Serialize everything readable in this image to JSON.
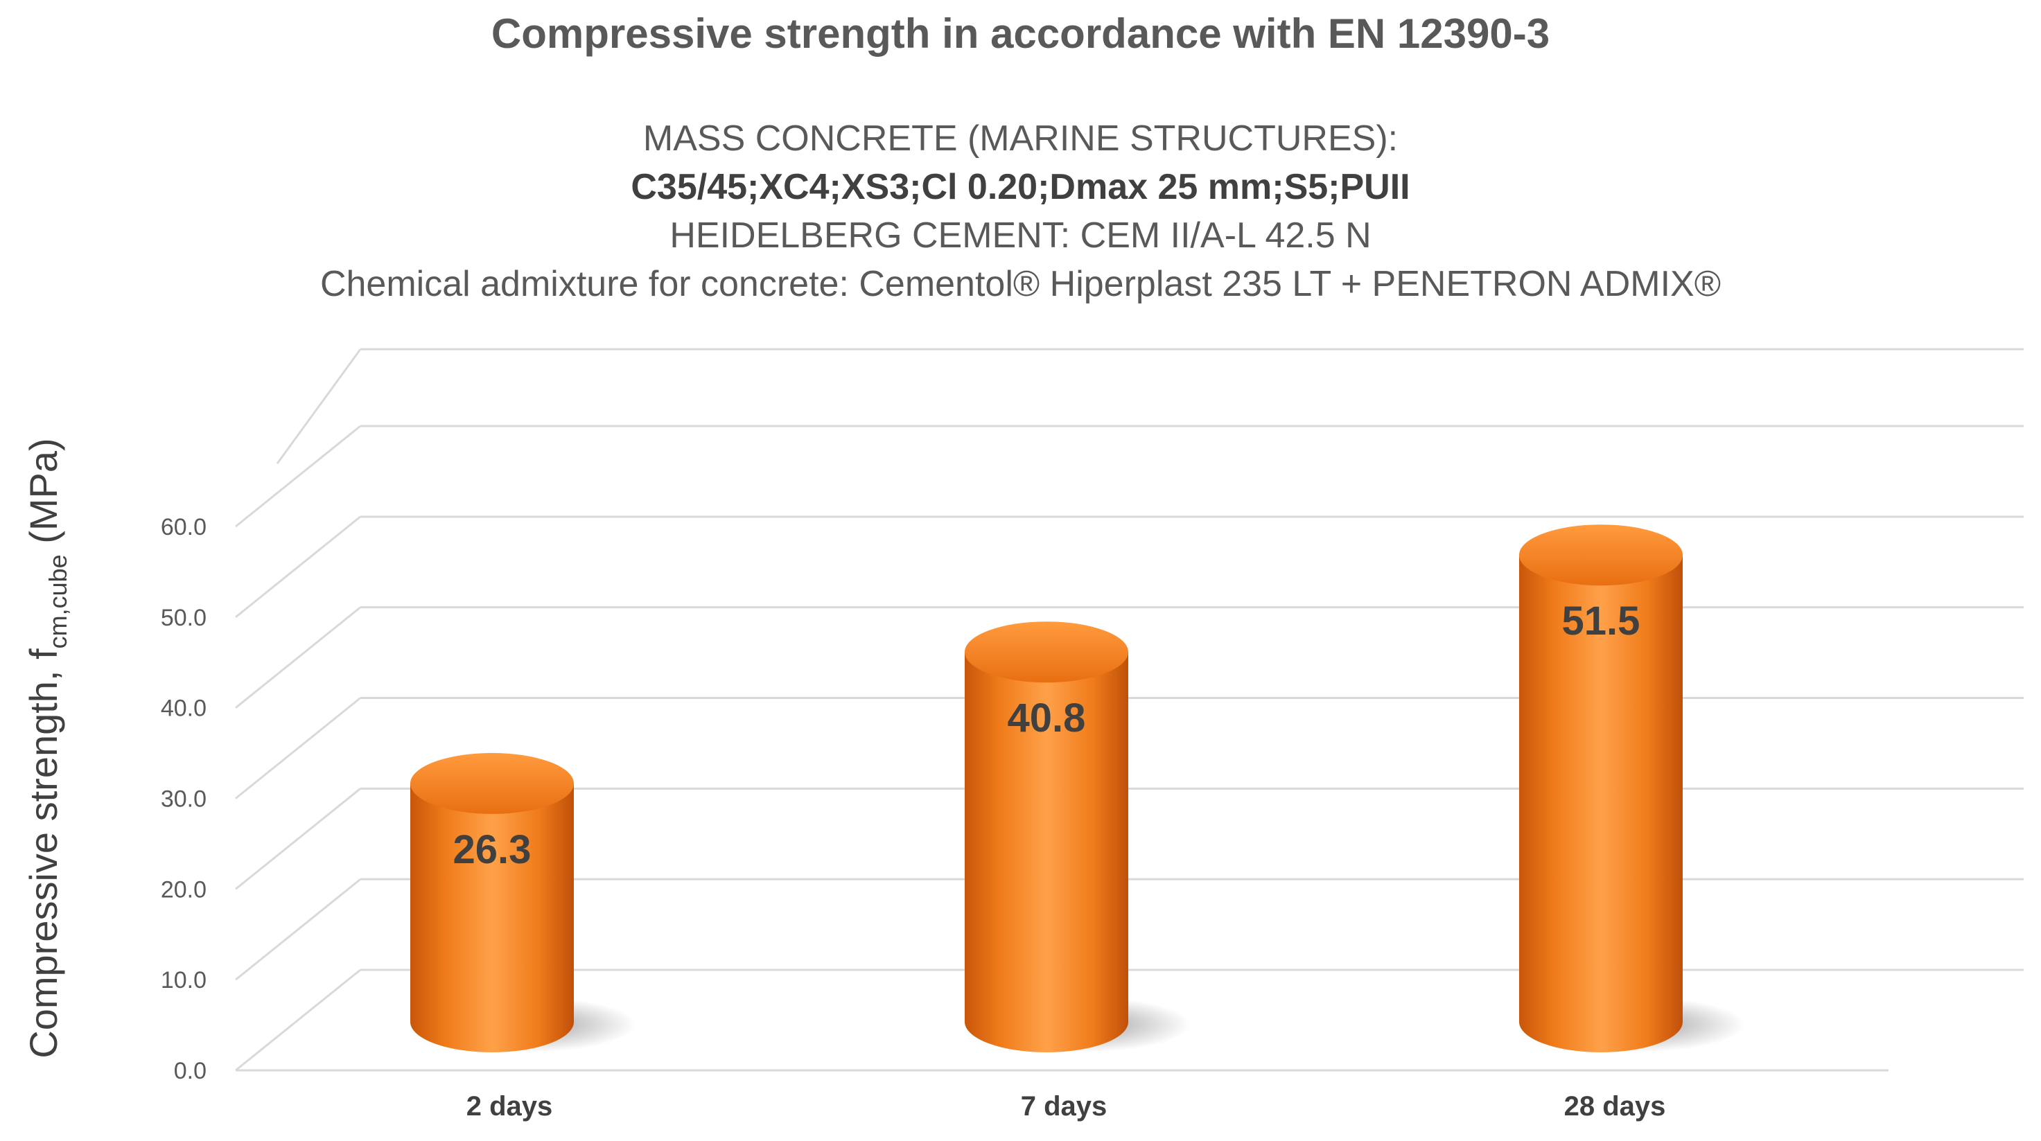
{
  "chart_data": {
    "type": "bar",
    "title": "Compressive strength in accordance with EN 12390-3",
    "subtitle_lines": [
      "MASS CONCRETE (MARINE STRUCTURES):",
      "C35/45;XC4;XS3;Cl 0.20;Dmax 25 mm;S5;PUII",
      "HEIDELBERG CEMENT: CEM II/A-L 42.5 N",
      "Chemical admixture for concrete: Cementol® Hiperplast 235 LT + PENETRON ADMIX®"
    ],
    "ylabel": "Compressive strength, ",
    "ylabel_symbol": "f",
    "ylabel_subscript": "cm,cube",
    "ylabel_unit": " (MPa)",
    "categories": [
      "2 days",
      "7 days",
      "28 days"
    ],
    "values": [
      26.3,
      40.8,
      51.5
    ],
    "data_labels": [
      "26.3",
      "40.8",
      "51.5"
    ],
    "ylim": [
      0,
      60
    ],
    "yticks": [
      "0.0",
      "10.0",
      "20.0",
      "30.0",
      "40.0",
      "50.0",
      "60.0"
    ],
    "grid": true,
    "bar_shape": "cylinder",
    "bar_color": "#f07c1a",
    "label_color": "#404040",
    "grid_color": "#d9d9d9"
  }
}
